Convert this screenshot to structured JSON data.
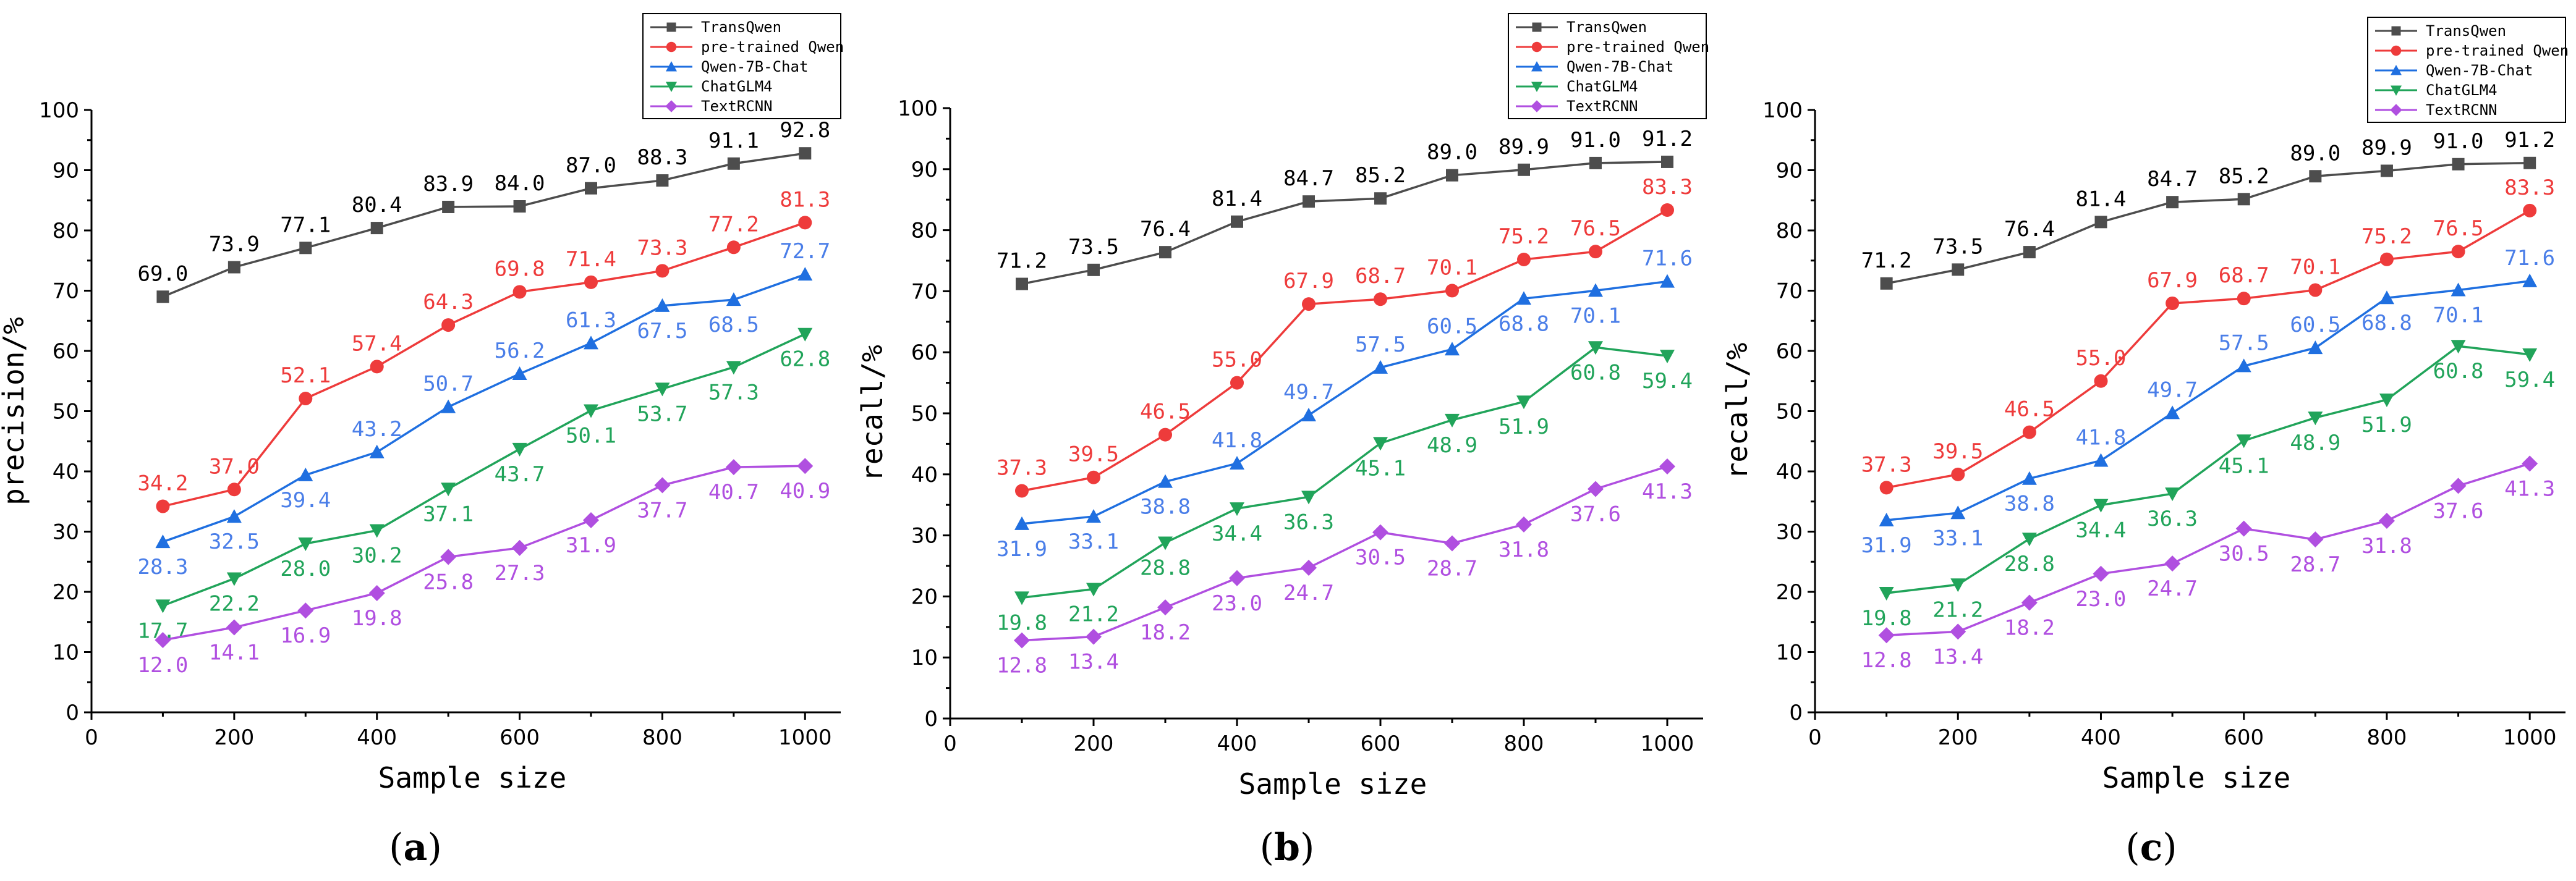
{
  "legend_entries": [
    "TransQwen",
    "pre-trained Qwen",
    "Qwen-7B-Chat",
    "ChatGLM4",
    "TextRCNN"
  ],
  "series_colors": [
    "#4d4d4d",
    "#ee3b3b",
    "#1f6fe0",
    "#21a45a",
    "#b04fe0"
  ],
  "label_colors": [
    "#000000",
    "#ee3b3b",
    "#4a7ee8",
    "#21a45a",
    "#b04fe0"
  ],
  "series_markers": [
    "square",
    "circle",
    "triangle-up",
    "triangle-down",
    "diamond"
  ],
  "chart_data": [
    {
      "type": "line",
      "panel_label": "(a)",
      "panel_letter": "a",
      "xlabel": "Sample size",
      "ylabel": "precision/%",
      "xlim": [
        0,
        1050
      ],
      "ylim": [
        0,
        100
      ],
      "xticks": [
        0,
        200,
        400,
        600,
        800,
        1000
      ],
      "yticks": [
        0,
        10,
        20,
        30,
        40,
        50,
        60,
        70,
        80,
        90,
        100
      ],
      "x": [
        100,
        200,
        300,
        400,
        500,
        600,
        700,
        800,
        900,
        1000
      ],
      "series": [
        {
          "name": "TransQwen",
          "values": [
            69.0,
            73.9,
            77.1,
            80.4,
            83.9,
            84.0,
            87.0,
            88.3,
            91.1,
            92.8
          ]
        },
        {
          "name": "pre-trained Qwen",
          "values": [
            34.2,
            37.0,
            52.1,
            57.4,
            64.3,
            69.8,
            71.4,
            73.3,
            77.2,
            81.3
          ]
        },
        {
          "name": "Qwen-7B-Chat",
          "values": [
            28.3,
            32.5,
            39.4,
            43.2,
            50.7,
            56.2,
            61.3,
            67.5,
            68.5,
            72.7
          ]
        },
        {
          "name": "ChatGLM4",
          "values": [
            17.7,
            22.2,
            28.0,
            30.2,
            37.1,
            43.7,
            50.1,
            53.7,
            57.3,
            62.8
          ]
        },
        {
          "name": "TextRCNN",
          "values": [
            12.0,
            14.1,
            16.9,
            19.8,
            25.8,
            27.3,
            31.9,
            37.7,
            40.7,
            40.9
          ]
        }
      ]
    },
    {
      "type": "line",
      "panel_label": "(b)",
      "panel_letter": "b",
      "xlabel": "Sample size",
      "ylabel": "recall/%",
      "xlim": [
        0,
        1050
      ],
      "ylim": [
        0,
        100
      ],
      "xticks": [
        0,
        200,
        400,
        600,
        800,
        1000
      ],
      "yticks": [
        0,
        10,
        20,
        30,
        40,
        50,
        60,
        70,
        80,
        90,
        100
      ],
      "x": [
        100,
        200,
        300,
        400,
        500,
        600,
        700,
        800,
        900,
        1000
      ],
      "series": [
        {
          "name": "TransQwen",
          "values": [
            71.2,
            73.5,
            76.4,
            81.4,
            84.7,
            85.2,
            89.0,
            89.9,
            91.0,
            91.2
          ]
        },
        {
          "name": "pre-trained Qwen",
          "values": [
            37.3,
            39.5,
            46.5,
            55.0,
            67.9,
            68.7,
            70.1,
            75.2,
            76.5,
            83.3
          ]
        },
        {
          "name": "Qwen-7B-Chat",
          "values": [
            31.9,
            33.1,
            38.8,
            41.8,
            49.7,
            57.5,
            60.5,
            68.8,
            70.1,
            71.6
          ]
        },
        {
          "name": "ChatGLM4",
          "values": [
            19.8,
            21.2,
            28.8,
            34.4,
            36.3,
            45.1,
            48.9,
            51.9,
            60.8,
            59.4
          ]
        },
        {
          "name": "TextRCNN",
          "values": [
            12.8,
            13.4,
            18.2,
            23.0,
            24.7,
            30.5,
            28.7,
            31.8,
            37.6,
            41.3
          ]
        }
      ]
    },
    {
      "type": "line",
      "panel_label": "(c)",
      "panel_letter": "c",
      "xlabel": "Sample size",
      "ylabel": "recall/%",
      "xlim": [
        0,
        1050
      ],
      "ylim": [
        0,
        100
      ],
      "xticks": [
        0,
        200,
        400,
        600,
        800,
        1000
      ],
      "yticks": [
        0,
        10,
        20,
        30,
        40,
        50,
        60,
        70,
        80,
        90,
        100
      ],
      "x": [
        100,
        200,
        300,
        400,
        500,
        600,
        700,
        800,
        900,
        1000
      ],
      "series": [
        {
          "name": "TransQwen",
          "values": [
            71.2,
            73.5,
            76.4,
            81.4,
            84.7,
            85.2,
            89.0,
            89.9,
            91.0,
            91.2
          ]
        },
        {
          "name": "pre-trained Qwen",
          "values": [
            37.3,
            39.5,
            46.5,
            55.0,
            67.9,
            68.7,
            70.1,
            75.2,
            76.5,
            83.3
          ]
        },
        {
          "name": "Qwen-7B-Chat",
          "values": [
            31.9,
            33.1,
            38.8,
            41.8,
            49.7,
            57.5,
            60.5,
            68.8,
            70.1,
            71.6
          ]
        },
        {
          "name": "ChatGLM4",
          "values": [
            19.8,
            21.2,
            28.8,
            34.4,
            36.3,
            45.1,
            48.9,
            51.9,
            60.8,
            59.4
          ]
        },
        {
          "name": "TextRCNN",
          "values": [
            12.8,
            13.4,
            18.2,
            23.0,
            24.7,
            30.5,
            28.7,
            31.8,
            37.6,
            41.3
          ]
        }
      ]
    }
  ]
}
